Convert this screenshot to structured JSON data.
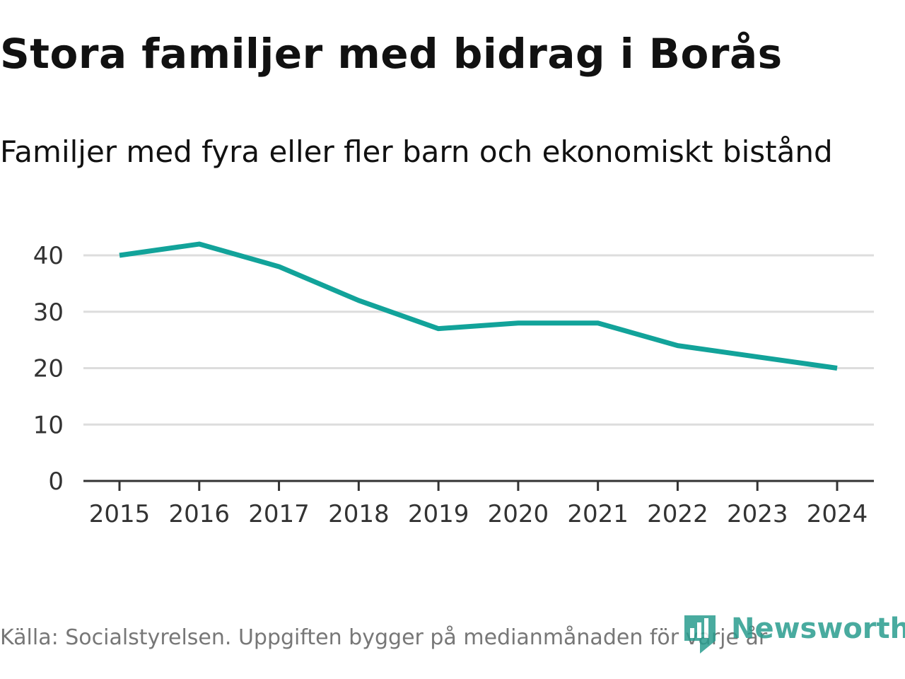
{
  "title": "Stora familjer med bidrag i Borås",
  "subtitle": "Familjer med fyra eller fler barn och ekonomiskt bistånd",
  "footer": "Källa: Socialstyrelsen. Uppgiften bygger på medianmånaden för varje år",
  "brand": {
    "name": "Newsworthy",
    "color": "#2a9d8f"
  },
  "colors": {
    "line": "#12a39a",
    "grid": "#dddddd",
    "axis": "#333333"
  },
  "chart_data": {
    "type": "line",
    "title": "Stora familjer med bidrag i Borås",
    "subtitle": "Familjer med fyra eller fler barn och ekonomiskt bistånd",
    "xlabel": "",
    "ylabel": "",
    "x": [
      "2015",
      "2016",
      "2017",
      "2018",
      "2019",
      "2020",
      "2021",
      "2022",
      "2023",
      "2024"
    ],
    "series": [
      {
        "name": "Familjer",
        "values": [
          40,
          42,
          38,
          32,
          27,
          28,
          28,
          24,
          22,
          20
        ]
      }
    ],
    "yticks": [
      0,
      10,
      20,
      30,
      40
    ],
    "ylim": [
      0,
      40
    ],
    "grid": true,
    "legend": "none"
  }
}
